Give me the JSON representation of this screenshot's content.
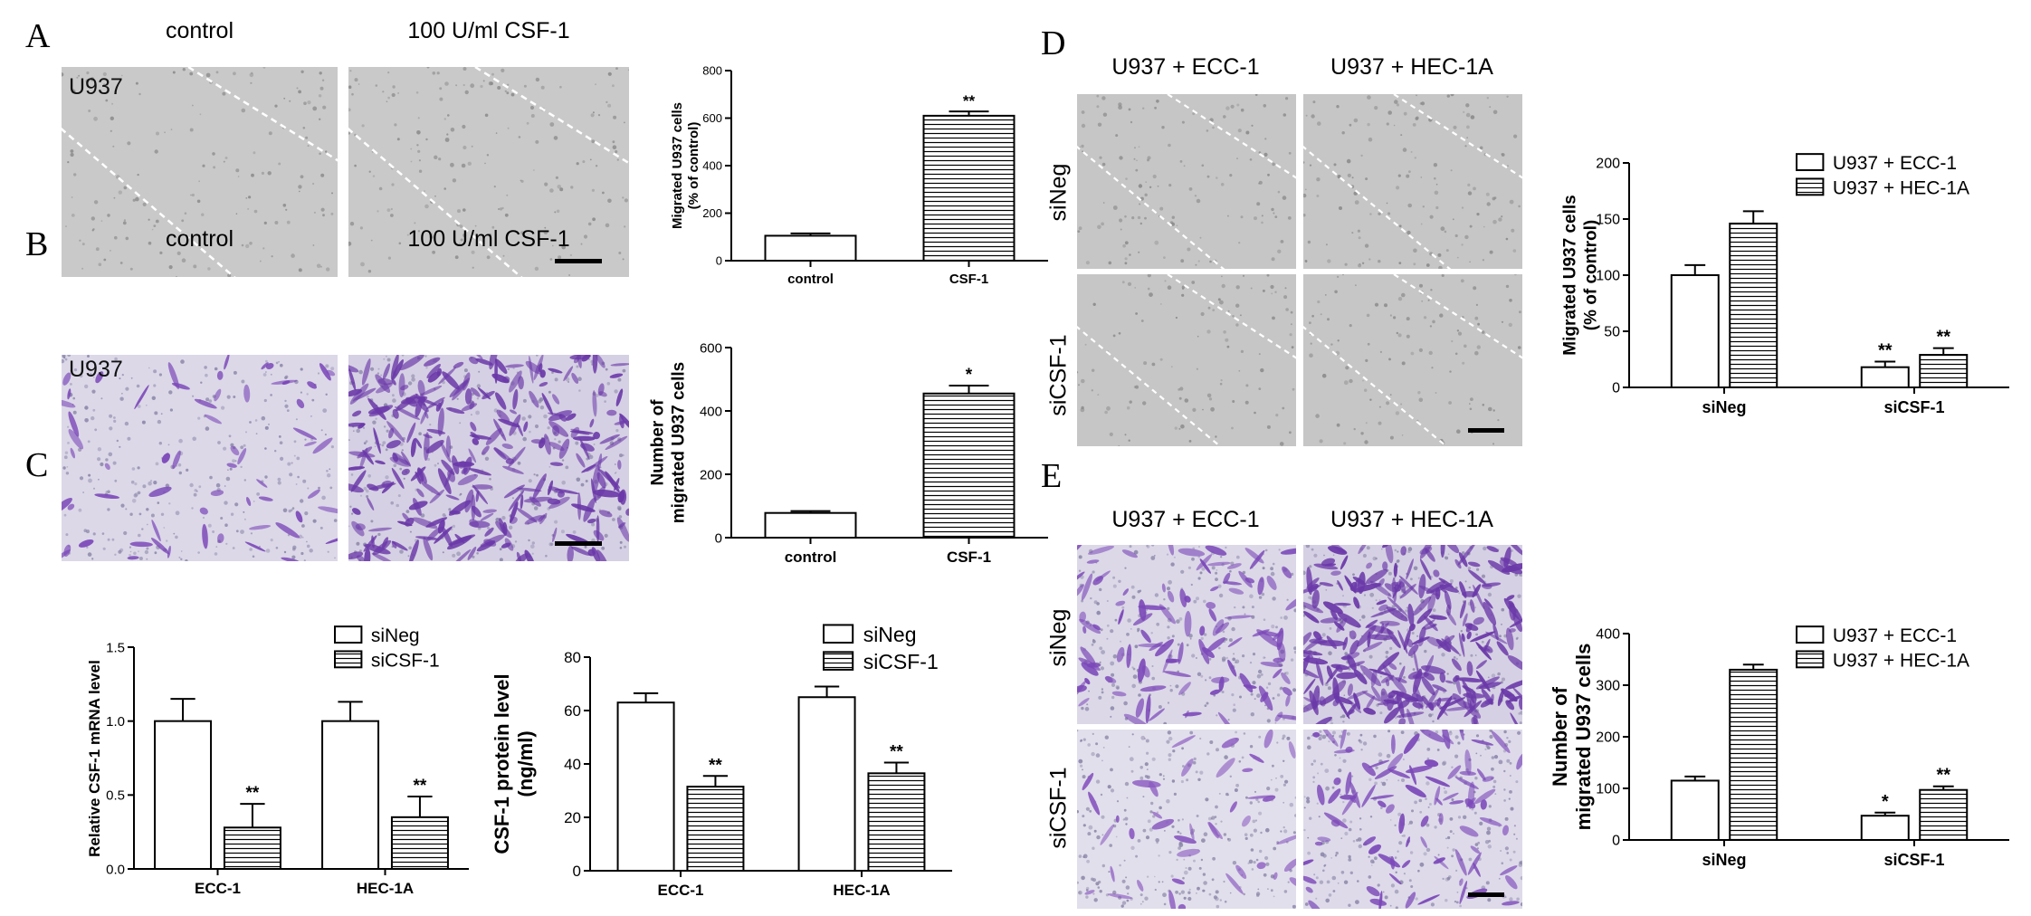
{
  "panels": {
    "A": {
      "letter": "A",
      "columns": [
        "control",
        "100 U/ml CSF-1"
      ],
      "cell_label": "U937"
    },
    "B": {
      "letter": "B",
      "columns": [
        "control",
        "100 U/ml CSF-1"
      ],
      "cell_label": "U937"
    },
    "C": {
      "letter": "C"
    },
    "D": {
      "letter": "D",
      "columns": [
        "U937 + ECC-1",
        "U937 + HEC-1A"
      ],
      "rows": [
        "siNeg",
        "siCSF-1"
      ]
    },
    "E": {
      "letter": "E",
      "columns": [
        "U937 + ECC-1",
        "U937 + HEC-1A"
      ],
      "rows": [
        "siNeg",
        "siCSF-1"
      ]
    }
  },
  "chart_data": [
    {
      "id": "A",
      "type": "bar",
      "categories": [
        "control",
        "CSF-1"
      ],
      "values": [
        105,
        610
      ],
      "errors": [
        10,
        18
      ],
      "significance": [
        "",
        "**"
      ],
      "fills": [
        "open",
        "hatched"
      ],
      "ylabel": "Migrated U937 cells\n(% of control)",
      "yticks": [
        0,
        200,
        400,
        600,
        800
      ],
      "ylim": [
        0,
        800
      ]
    },
    {
      "id": "B",
      "type": "bar",
      "categories": [
        "control",
        "CSF-1"
      ],
      "values": [
        78,
        455
      ],
      "errors": [
        6,
        25
      ],
      "significance": [
        "",
        "*"
      ],
      "fills": [
        "open",
        "hatched"
      ],
      "ylabel": "Number of\nmigrated U937 cells",
      "yticks": [
        0,
        200,
        400,
        600
      ],
      "ylim": [
        0,
        600
      ]
    },
    {
      "id": "C1",
      "type": "bar",
      "categories": [
        "ECC-1",
        "HEC-1A"
      ],
      "series": [
        {
          "name": "siNeg",
          "values": [
            1.0,
            1.0
          ],
          "errors": [
            0.15,
            0.13
          ],
          "significance": [
            "",
            ""
          ]
        },
        {
          "name": "siCSF-1",
          "values": [
            0.28,
            0.35
          ],
          "errors": [
            0.16,
            0.14
          ],
          "significance": [
            "**",
            "**"
          ]
        }
      ],
      "ylabel": "Relative CSF-1 mRNA level",
      "yticks": [
        "0.0",
        "0.5",
        "1.0",
        "1.5"
      ],
      "ylim": [
        0,
        1.5
      ],
      "legend": "top-right"
    },
    {
      "id": "C2",
      "type": "bar",
      "categories": [
        "ECC-1",
        "HEC-1A"
      ],
      "series": [
        {
          "name": "siNeg",
          "values": [
            63,
            65
          ],
          "errors": [
            3.5,
            4
          ],
          "significance": [
            "",
            ""
          ]
        },
        {
          "name": "siCSF-1",
          "values": [
            31.5,
            36.5
          ],
          "errors": [
            4,
            4
          ],
          "significance": [
            "**",
            "**"
          ]
        }
      ],
      "ylabel": "CSF-1 protein level\n(ng/ml)",
      "yticks": [
        0,
        20,
        40,
        60,
        80
      ],
      "ylim": [
        0,
        80
      ],
      "legend": "top-right"
    },
    {
      "id": "D",
      "type": "bar",
      "categories": [
        "siNeg",
        "siCSF-1"
      ],
      "series": [
        {
          "name": "U937 + ECC-1",
          "values": [
            100,
            18
          ],
          "errors": [
            9,
            5
          ],
          "significance": [
            "",
            "**"
          ]
        },
        {
          "name": "U937 + HEC-1A",
          "values": [
            146,
            29
          ],
          "errors": [
            11,
            6
          ],
          "significance": [
            "",
            "**"
          ]
        }
      ],
      "ylabel": "Migrated U937 cells\n(% of control)",
      "yticks": [
        0,
        50,
        100,
        150,
        200
      ],
      "ylim": [
        0,
        200
      ],
      "legend": "top-right"
    },
    {
      "id": "E",
      "type": "bar",
      "categories": [
        "siNeg",
        "siCSF-1"
      ],
      "series": [
        {
          "name": "U937 + ECC-1",
          "values": [
            115,
            47
          ],
          "errors": [
            8,
            6
          ],
          "significance": [
            "",
            "*"
          ]
        },
        {
          "name": "U937 + HEC-1A",
          "values": [
            330,
            97
          ],
          "errors": [
            10,
            7
          ],
          "significance": [
            "",
            "**"
          ]
        }
      ],
      "ylabel": "Number of\nmigrated U937 cells",
      "yticks": [
        0,
        100,
        200,
        300,
        400
      ],
      "ylim": [
        0,
        400
      ],
      "legend": "top-right"
    }
  ]
}
